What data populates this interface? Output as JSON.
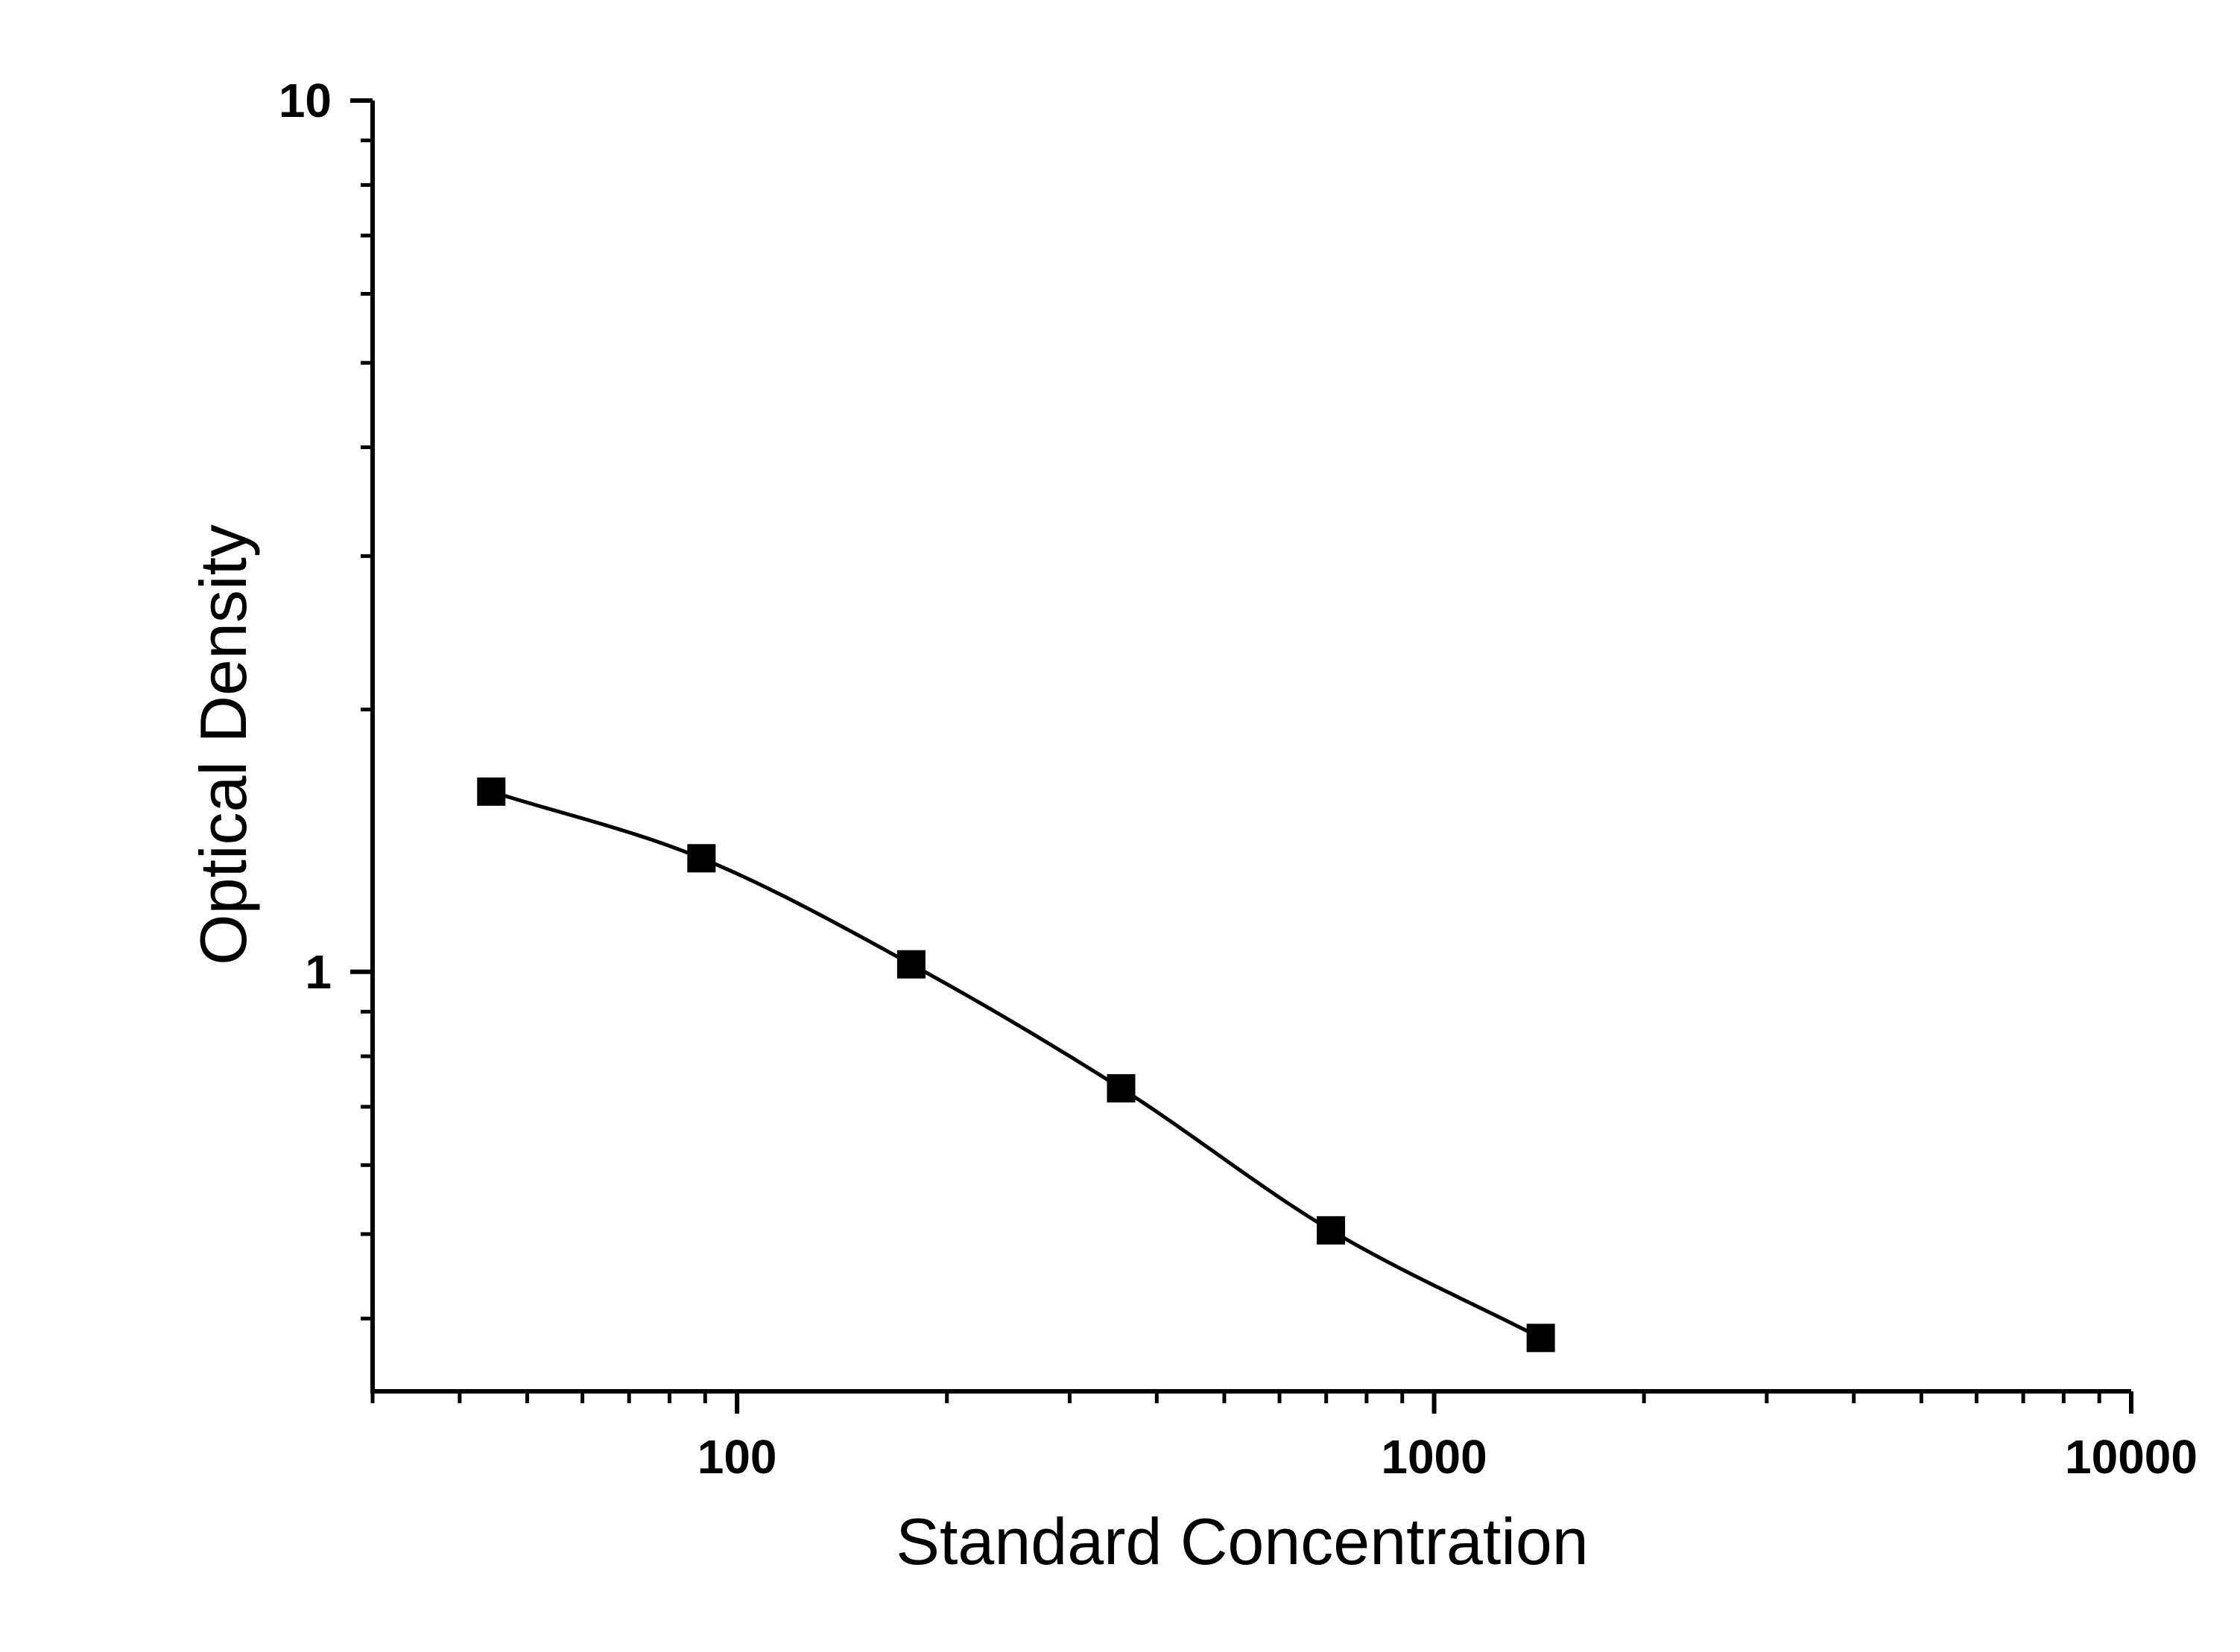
{
  "chart_data": {
    "type": "scatter",
    "title": "",
    "xlabel": "Standard Concentration",
    "ylabel": "Optical Density",
    "xscale": "log",
    "yscale": "log",
    "xlim": [
      30,
      10000
    ],
    "ylim": [
      0.33,
      10
    ],
    "grid": false,
    "legend": "none",
    "x_tick_labels": [
      "100",
      "1000",
      "10000"
    ],
    "y_tick_labels": [
      "1",
      "10"
    ],
    "series": [
      {
        "x": [
          44.4,
          88.9,
          177.8,
          355.6,
          711.1,
          1422.2
        ],
        "y": [
          1.61,
          1.35,
          1.02,
          0.735,
          0.505,
          0.38
        ],
        "marker": "square",
        "fitted_curve": true
      }
    ],
    "colors": {
      "axis": "#000000",
      "marker": "#000000",
      "curve": "#000000"
    }
  }
}
